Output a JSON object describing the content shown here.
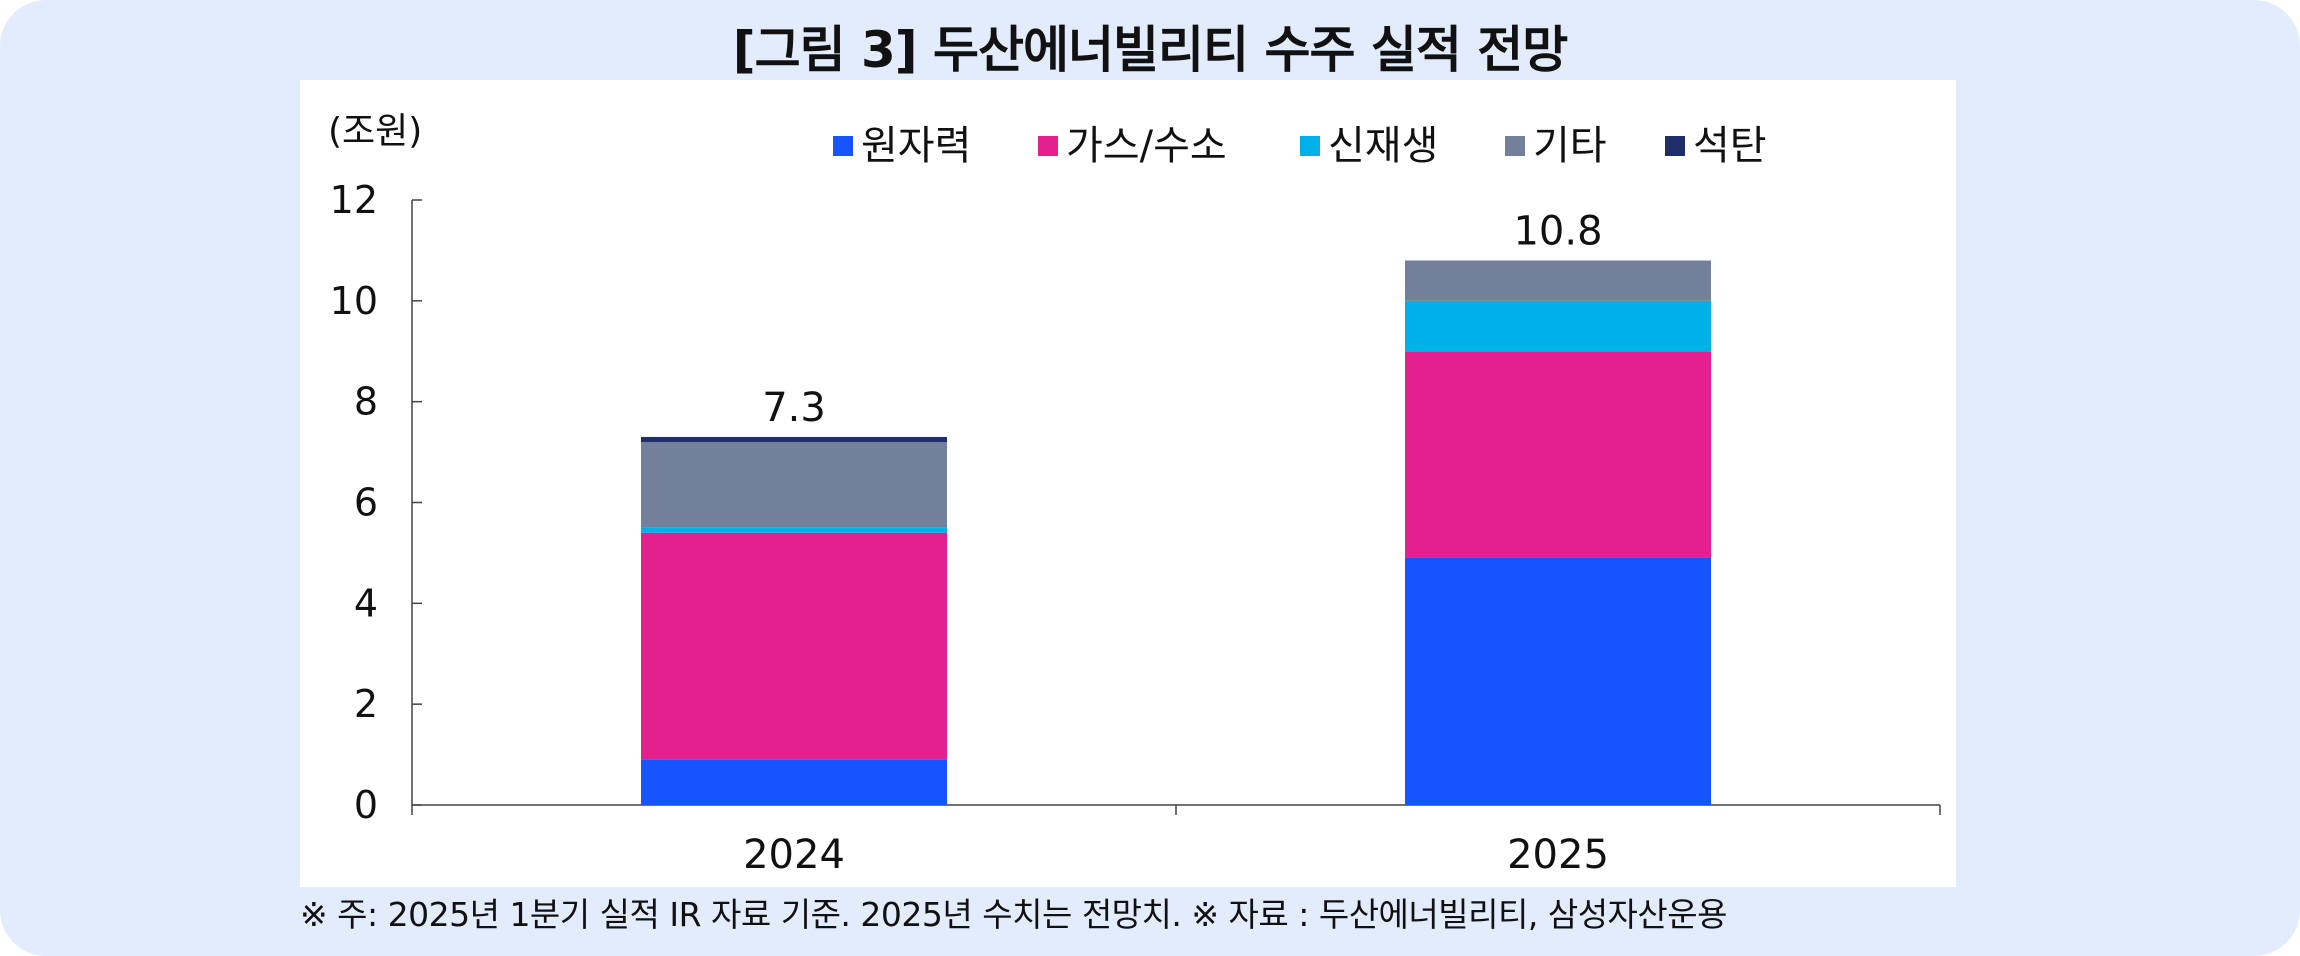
{
  "title": "[그림 3] 두산에너빌리티 수주 실적 전망",
  "footnote": "※ 주: 2025년 1분기 실적 IR 자료 기준. 2025년 수치는 전망치. ※ 자료 : 두산에너빌리티, 삼성자산운용",
  "chart_data": {
    "type": "bar",
    "stacked": true,
    "unit_label": "(조원)",
    "categories": [
      "2024",
      "2025"
    ],
    "series": [
      {
        "name": "원자력",
        "color": "#1753ff",
        "values": [
          0.9,
          4.9
        ]
      },
      {
        "name": "가스/수소",
        "color": "#e3208e",
        "values": [
          4.5,
          4.1
        ]
      },
      {
        "name": "신재생",
        "color": "#00b0ea",
        "values": [
          0.1,
          1.0
        ]
      },
      {
        "name": "기타",
        "color": "#72809b",
        "values": [
          1.7,
          0.8
        ]
      },
      {
        "name": "석탄",
        "color": "#1d2e6b",
        "values": [
          0.1,
          0.0
        ]
      }
    ],
    "totals": [
      "7.3",
      "10.8"
    ],
    "ylim": [
      0,
      12
    ],
    "yticks": [
      "0",
      "2",
      "4",
      "6",
      "8",
      "10",
      "12"
    ],
    "grid": false,
    "legend_position": "top"
  }
}
